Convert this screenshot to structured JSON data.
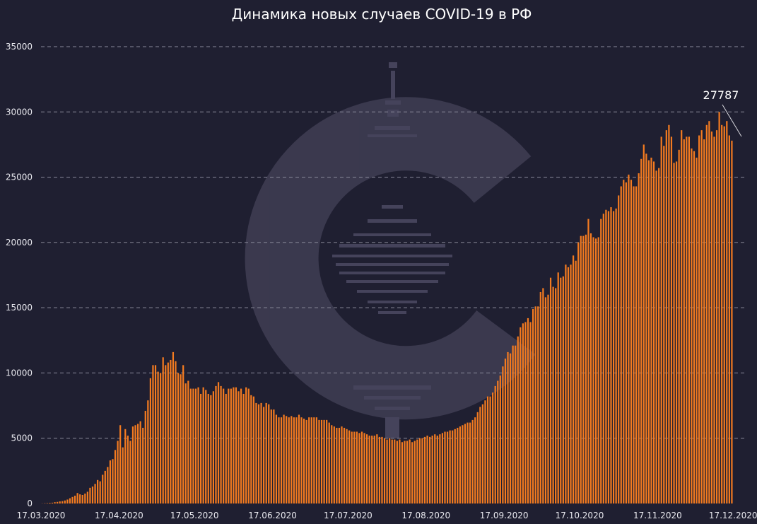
{
  "chart_data": {
    "type": "bar",
    "title": "Динамика новых случаев COVID-19 в РФ",
    "xlabel": "",
    "ylabel": "",
    "ylim": [
      0,
      35000
    ],
    "grid": true,
    "bar_color": "#f47b20",
    "background_color": "#1f1f31",
    "x_start": "17.03.2020",
    "x_end": "21.12.2020",
    "x_tick_labels": [
      "17.03.2020",
      "17.04.2020",
      "17.05.2020",
      "17.06.2020",
      "17.07.2020",
      "17.08.2020",
      "17.09.2020",
      "17.10.2020",
      "17.11.2020",
      "17.12.2020"
    ],
    "y_tick_labels": [
      "0",
      "5000",
      "10000",
      "15000",
      "20000",
      "25000",
      "30000",
      "35000"
    ],
    "annotation": {
      "text": "27787",
      "value": 27787
    },
    "values": [
      10,
      20,
      30,
      50,
      60,
      100,
      120,
      160,
      180,
      230,
      300,
      400,
      500,
      600,
      800,
      700,
      650,
      760,
      900,
      1200,
      1300,
      1500,
      1800,
      1700,
      2200,
      2500,
      2800,
      3300,
      3400,
      4100,
      4800,
      6000,
      4300,
      5700,
      5200,
      4800,
      5900,
      6000,
      6100,
      6300,
      5800,
      7100,
      7900,
      9600,
      10600,
      10600,
      10100,
      10000,
      11200,
      10600,
      10800,
      11000,
      11600,
      10900,
      10000,
      9900,
      10600,
      9200,
      9400,
      8800,
      8800,
      8800,
      8900,
      8400,
      8900,
      8700,
      8400,
      8300,
      8600,
      9000,
      9300,
      9000,
      8800,
      8400,
      8800,
      8800,
      8900,
      8900,
      8600,
      8800,
      8400,
      8900,
      8800,
      8300,
      8200,
      7700,
      7600,
      7700,
      7400,
      7700,
      7600,
      7200,
      7200,
      6800,
      6600,
      6600,
      6800,
      6700,
      6600,
      6700,
      6600,
      6600,
      6800,
      6600,
      6500,
      6400,
      6600,
      6600,
      6600,
      6600,
      6400,
      6400,
      6400,
      6400,
      6200,
      6000,
      5900,
      5800,
      5800,
      5900,
      5800,
      5700,
      5600,
      5500,
      5500,
      5500,
      5400,
      5500,
      5400,
      5300,
      5200,
      5200,
      5200,
      5300,
      5100,
      5100,
      5000,
      4900,
      5000,
      4900,
      4900,
      4800,
      4900,
      4700,
      4800,
      4800,
      4900,
      4700,
      4800,
      4900,
      5000,
      5000,
      5100,
      5200,
      5100,
      5200,
      5300,
      5200,
      5300,
      5400,
      5500,
      5500,
      5600,
      5600,
      5700,
      5800,
      5900,
      6000,
      6100,
      6200,
      6200,
      6400,
      6600,
      7000,
      7400,
      7600,
      7900,
      8200,
      8200,
      8500,
      9000,
      9400,
      9800,
      10500,
      11100,
      11600,
      11500,
      12100,
      12100,
      12800,
      13500,
      13800,
      13900,
      14200,
      13900,
      14900,
      15100,
      15100,
      16200,
      16500,
      15800,
      16000,
      17300,
      16600,
      16500,
      17700,
      17300,
      17400,
      18300,
      18100,
      18300,
      19000,
      18600,
      20000,
      20500,
      20500,
      20600,
      21800,
      20700,
      20400,
      20300,
      20400,
      21800,
      22200,
      22500,
      22400,
      22700,
      22400,
      22600,
      23600,
      24300,
      24800,
      24600,
      25200,
      24800,
      24300,
      24300,
      25300,
      26400,
      27500,
      26800,
      26300,
      26500,
      26200,
      25500,
      25700,
      28100,
      27400,
      28600,
      29000,
      28100,
      26100,
      26200,
      27100,
      28600,
      27900,
      28100,
      28100,
      27200,
      27000,
      26500,
      28200,
      28600,
      27900,
      29000,
      29300,
      28500,
      28100,
      28600,
      30000,
      29000,
      28900,
      29300,
      28200,
      27800
    ]
  }
}
